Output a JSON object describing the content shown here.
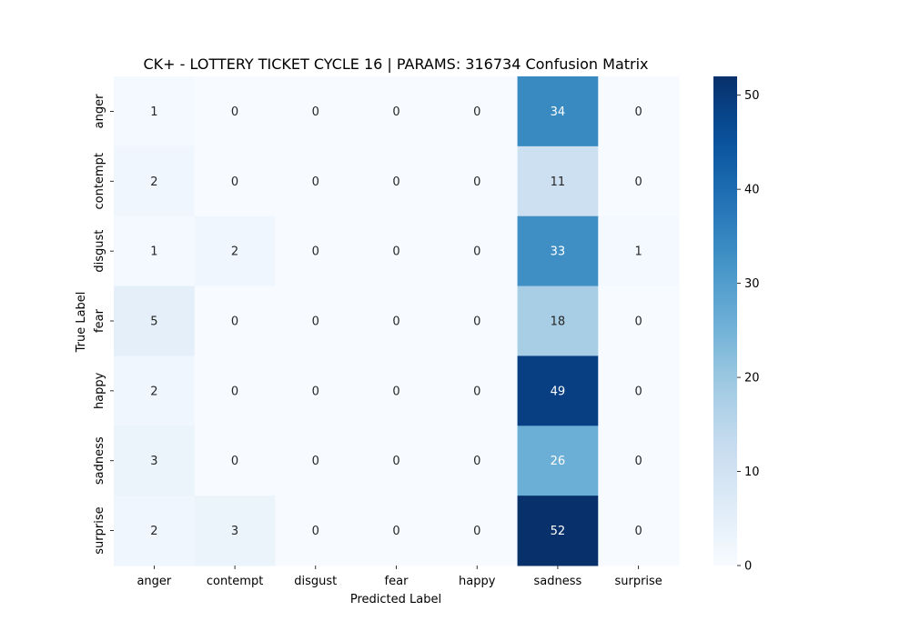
{
  "chart_data": {
    "type": "heatmap",
    "title": "CK+ - LOTTERY TICKET CYCLE 16 | PARAMS: 316734 Confusion Matrix",
    "xlabel": "Predicted Label",
    "ylabel": "True Label",
    "x_categories": [
      "anger",
      "contempt",
      "disgust",
      "fear",
      "happy",
      "sadness",
      "surprise"
    ],
    "y_categories": [
      "anger",
      "contempt",
      "disgust",
      "fear",
      "happy",
      "sadness",
      "surprise"
    ],
    "values": [
      [
        1,
        0,
        0,
        0,
        0,
        34,
        0
      ],
      [
        2,
        0,
        0,
        0,
        0,
        11,
        0
      ],
      [
        1,
        2,
        0,
        0,
        0,
        33,
        1
      ],
      [
        5,
        0,
        0,
        0,
        0,
        18,
        0
      ],
      [
        2,
        0,
        0,
        0,
        0,
        49,
        0
      ],
      [
        3,
        0,
        0,
        0,
        0,
        26,
        0
      ],
      [
        2,
        3,
        0,
        0,
        0,
        52,
        0
      ]
    ],
    "colormap": "Blues",
    "vmin": 0,
    "vmax": 52,
    "colorbar_ticks": [
      0,
      10,
      20,
      30,
      40,
      50
    ],
    "grid": false,
    "legend": "colorbar-right"
  }
}
